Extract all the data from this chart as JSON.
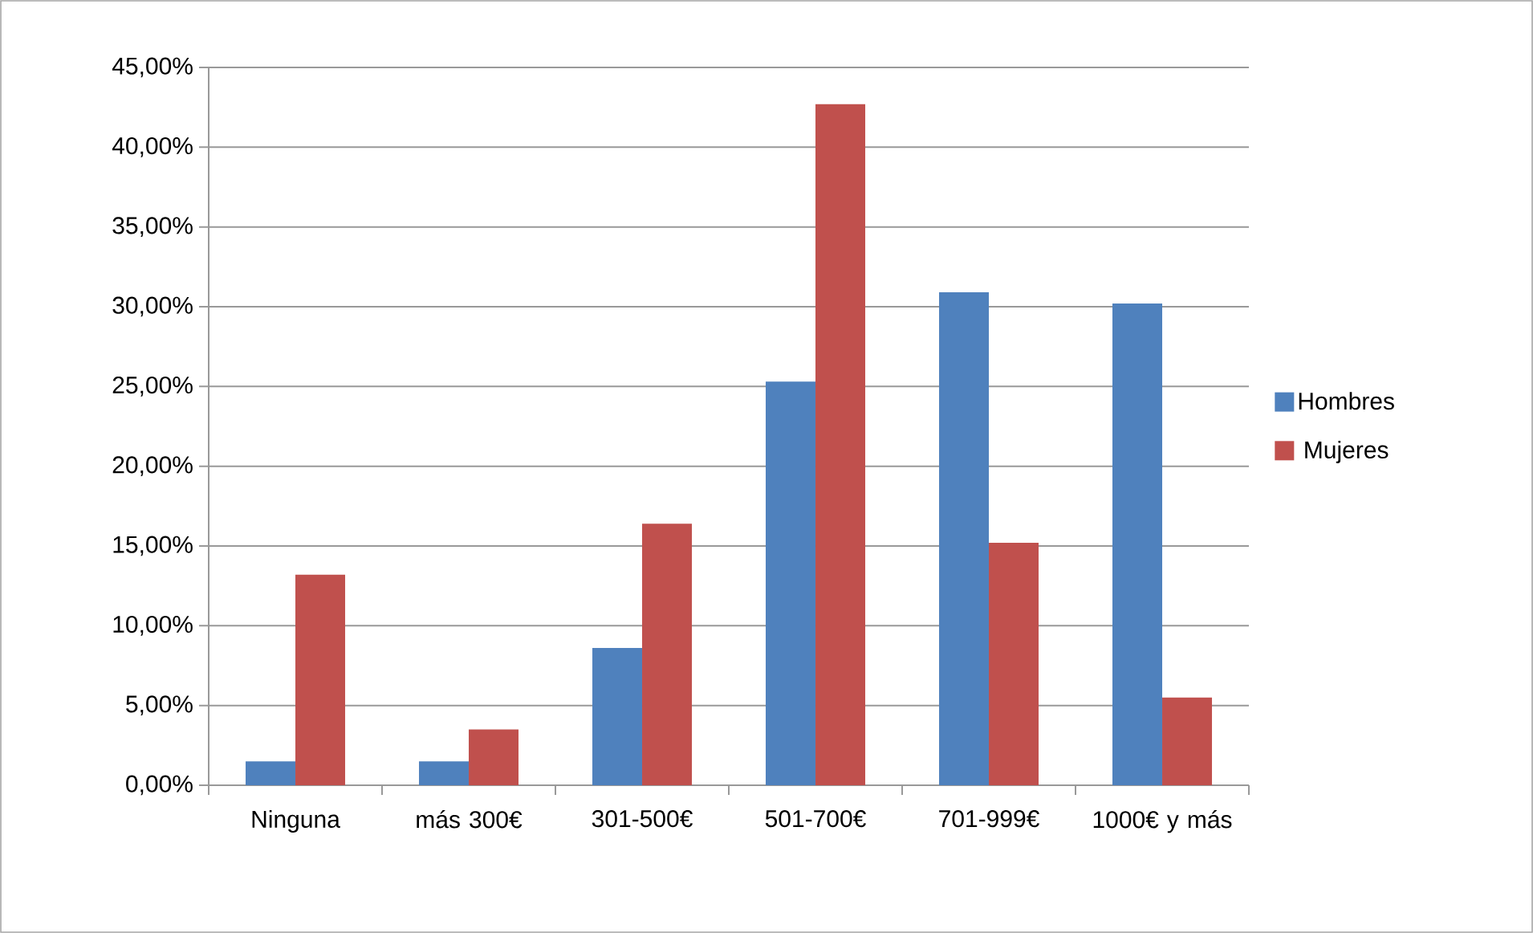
{
  "chart_data": {
    "type": "bar",
    "categories": [
      "Ninguna",
      "más 300€",
      "301-500€",
      "501-700€",
      "701-999€",
      "1000€  y más"
    ],
    "series": [
      {
        "name": "Hombres",
        "color": "#4f81bd",
        "values": [
          1.5,
          1.5,
          8.6,
          25.3,
          30.9,
          30.2
        ]
      },
      {
        "name": "Mujeres",
        "color": "#c0504d",
        "values": [
          13.2,
          3.5,
          16.4,
          42.7,
          15.2,
          5.5
        ]
      }
    ],
    "ylim": [
      0,
      45
    ],
    "yticks": [
      {
        "value": 0,
        "label": "0,00%"
      },
      {
        "value": 5,
        "label": "5,00%"
      },
      {
        "value": 10,
        "label": "10,00%"
      },
      {
        "value": 15,
        "label": "15,00%"
      },
      {
        "value": 20,
        "label": "20,00%"
      },
      {
        "value": 25,
        "label": "25,00%"
      },
      {
        "value": 30,
        "label": "30,00%"
      },
      {
        "value": 35,
        "label": "35,00%"
      },
      {
        "value": 40,
        "label": "40,00%"
      },
      {
        "value": 45,
        "label": "45,00%"
      }
    ],
    "grid": "y",
    "legend": "right"
  }
}
